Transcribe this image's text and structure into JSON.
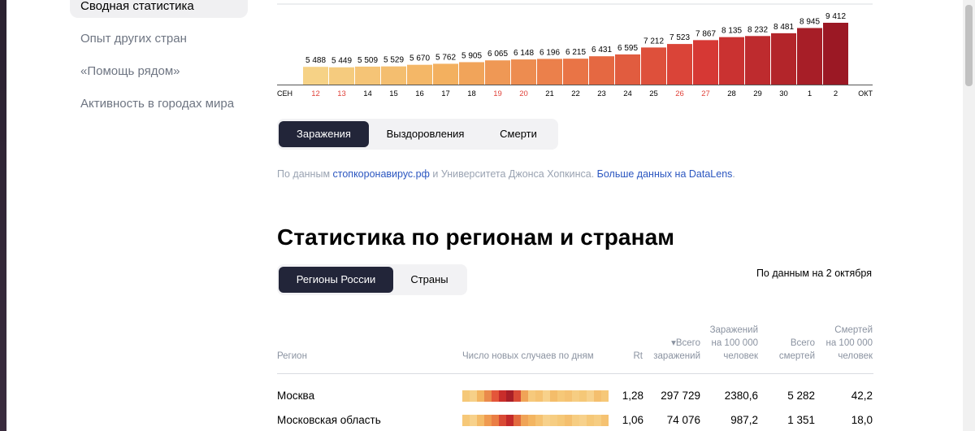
{
  "sidebar": {
    "items": [
      {
        "label": "Сводная статистика",
        "active": true
      },
      {
        "label": "Опыт других стран",
        "active": false
      },
      {
        "label": "«Помощь рядом»",
        "active": false
      },
      {
        "label": "Активность в городах мира",
        "active": false
      }
    ]
  },
  "chart_data": {
    "type": "bar",
    "title": "",
    "categories": [
      "12",
      "13",
      "14",
      "15",
      "16",
      "17",
      "18",
      "19",
      "20",
      "21",
      "22",
      "23",
      "24",
      "25",
      "26",
      "27",
      "28",
      "29",
      "30",
      "1",
      "2"
    ],
    "values": [
      5488,
      5449,
      5509,
      5529,
      5670,
      5762,
      5905,
      6065,
      6148,
      6196,
      6215,
      6431,
      6595,
      7212,
      7523,
      7867,
      8135,
      8232,
      8481,
      8945,
      9412
    ],
    "value_labels": [
      "5 488",
      "5 449",
      "5 509",
      "5 529",
      "5 670",
      "5 762",
      "5 905",
      "6 065",
      "6 148",
      "6 196",
      "6 215",
      "6 431",
      "6 595",
      "7 212",
      "7 523",
      "7 867",
      "8 135",
      "8 232",
      "8 481",
      "8 945",
      "9 412"
    ],
    "weekend_categories": [
      "12",
      "13",
      "19",
      "20",
      "26",
      "27"
    ],
    "month_start_label": "СЕН",
    "month_end_label": "ОКТ",
    "weekend_color": "#e0423a",
    "tick_color": "#000000",
    "grid": false
  },
  "chart_tabs": [
    "Заражения",
    "Выздоровления",
    "Смерти"
  ],
  "source": {
    "prefix": "По данным ",
    "link1": "стопкоронавирус.рф",
    "middle": " и Университета Джонса Хопкинса. ",
    "link2": "Больше данных на DataLens",
    "suffix": "."
  },
  "section_title": "Статистика по регионам и странам",
  "region_tabs": [
    "Регионы России",
    "Страны"
  ],
  "as_of": "По данным на 2 октября",
  "table": {
    "headers": {
      "region": "Регион",
      "daily": "Число новых случаев по дням",
      "rt": "Rt",
      "total_cases": "▾Всего\nзаражений",
      "per100k": "Заражений\nна 100 000\nчеловек",
      "total_deaths": "Всего\nсмертей",
      "deaths100k": "Смертей\nна 100 000\nчеловек"
    },
    "rows": [
      {
        "region": "Москва",
        "rt": "1,28",
        "total_cases": "297 729",
        "per100k": "2380,6",
        "total_deaths": "5 282",
        "deaths100k": "42,2"
      },
      {
        "region": "Московская область",
        "rt": "1,06",
        "total_cases": "74 076",
        "per100k": "987,2",
        "total_deaths": "1 351",
        "deaths100k": "18,0"
      }
    ]
  },
  "colors": {
    "accent_dark": "#222539",
    "link": "#2b56c0"
  }
}
